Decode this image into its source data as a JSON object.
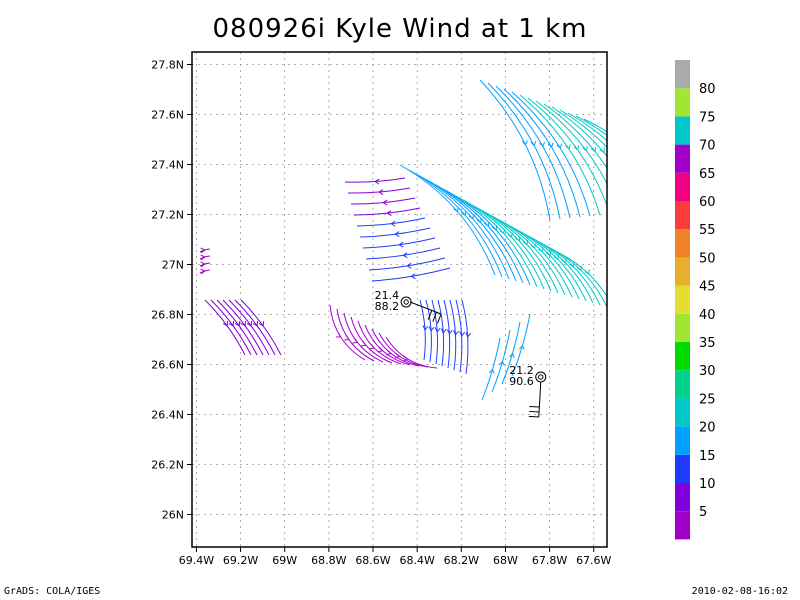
{
  "title": "080926i Kyle Wind at 1 km",
  "footer_left": "GrADS: COLA/IGES",
  "footer_right": "2010-02-08-16:02",
  "map": {
    "lon_range": [
      -69.42,
      -67.54
    ],
    "lat_range": [
      25.87,
      27.85
    ],
    "lon_ticks": [
      {
        "value": -69.4,
        "label": "69.4W"
      },
      {
        "value": -69.2,
        "label": "69.2W"
      },
      {
        "value": -69.0,
        "label": "69W"
      },
      {
        "value": -68.8,
        "label": "68.8W"
      },
      {
        "value": -68.6,
        "label": "68.6W"
      },
      {
        "value": -68.4,
        "label": "68.4W"
      },
      {
        "value": -68.2,
        "label": "68.2W"
      },
      {
        "value": -68.0,
        "label": "68W"
      },
      {
        "value": -67.8,
        "label": "67.8W"
      },
      {
        "value": -67.6,
        "label": "67.6W"
      }
    ],
    "lat_ticks": [
      {
        "value": 26.0,
        "label": "26N"
      },
      {
        "value": 26.2,
        "label": "26.2N"
      },
      {
        "value": 26.4,
        "label": "26.4N"
      },
      {
        "value": 26.6,
        "label": "26.6N"
      },
      {
        "value": 26.8,
        "label": "26.8N"
      },
      {
        "value": 27.0,
        "label": "27N"
      },
      {
        "value": 27.2,
        "label": "27.2N"
      },
      {
        "value": 27.4,
        "label": "27.4N"
      },
      {
        "value": 27.6,
        "label": "27.6N"
      },
      {
        "value": 27.8,
        "label": "27.8N"
      }
    ],
    "grid": true,
    "center_markers": [
      {
        "lon": -68.45,
        "lat": 26.85,
        "label_top": "21.4",
        "label_bottom": "88.2"
      },
      {
        "lon": -67.84,
        "lat": 26.55,
        "label_top": "21.2",
        "label_bottom": "90.6"
      }
    ]
  },
  "colorbar": {
    "colors": [
      "#a000c8",
      "#8200dc",
      "#1e3cff",
      "#00a0ff",
      "#00c8c8",
      "#00d28c",
      "#00dc00",
      "#a0e632",
      "#e6dc32",
      "#e6af2d",
      "#f08228",
      "#fa3c3c",
      "#f00082",
      "#a000c8",
      "#00c8c8",
      "#a0e632",
      "#aaaaaa"
    ],
    "labels": [
      "5",
      "10",
      "15",
      "20",
      "25",
      "30",
      "35",
      "40",
      "45",
      "50",
      "55",
      "60",
      "65",
      "70",
      "75",
      "80"
    ]
  }
}
